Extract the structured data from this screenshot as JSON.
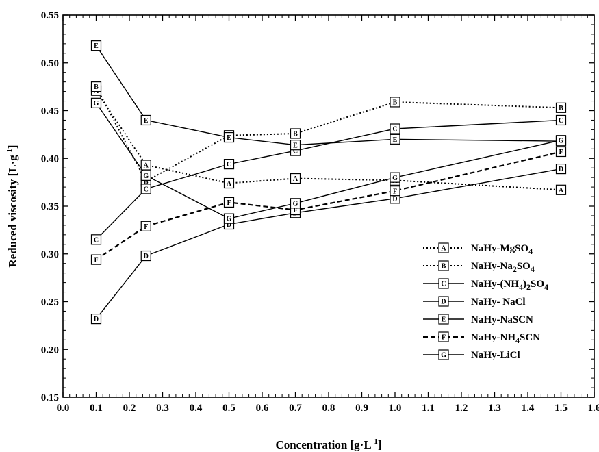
{
  "chart_data": {
    "type": "line",
    "xlabel": "Concentration [g·L",
    "xlabel_sup": "-1",
    "xlabel_close": "]",
    "ylabel": "Reduced viscosity [L·g",
    "ylabel_sup": "-1",
    "ylabel_close": "]",
    "xlim": [
      0.0,
      1.6
    ],
    "ylim": [
      0.15,
      0.55
    ],
    "x_ticks": [
      "0.0",
      "0.1",
      "0.2",
      "0.3",
      "0.4",
      "0.5",
      "0.6",
      "0.7",
      "0.8",
      "0.9",
      "1.0",
      "1.1",
      "1.2",
      "1.3",
      "1.4",
      "1.5",
      "1.6"
    ],
    "y_ticks": [
      "0.15",
      "0.20",
      "0.25",
      "0.30",
      "0.35",
      "0.40",
      "0.45",
      "0.50",
      "0.55"
    ],
    "legend_position": "bottom-right",
    "series": [
      {
        "marker": "A",
        "name": "NaHy-MgSO",
        "sub": "4",
        "rest": "",
        "line_style": "dotted",
        "x": [
          0.1,
          0.25,
          0.5,
          0.7,
          1.0,
          1.5
        ],
        "y": [
          0.471,
          0.393,
          0.374,
          0.379,
          0.377,
          0.367
        ]
      },
      {
        "marker": "B",
        "name": "NaHy-Na",
        "sub": "2",
        "rest": "SO4",
        "rest_parts": [
          "SO",
          "4"
        ],
        "line_style": "dotted",
        "x": [
          0.1,
          0.25,
          0.5,
          0.7,
          1.0,
          1.5
        ],
        "y": [
          0.475,
          0.376,
          0.424,
          0.426,
          0.459,
          0.453
        ]
      },
      {
        "marker": "C",
        "name": "NaHy-(NH",
        "sub": "4",
        "rest": ")2SO4",
        "rest_parts": [
          ")",
          "2",
          "SO",
          "4"
        ],
        "line_style": "solid",
        "x": [
          0.1,
          0.25,
          0.5,
          0.7,
          1.0,
          1.5
        ],
        "y": [
          0.315,
          0.368,
          0.394,
          0.408,
          0.431,
          0.44
        ]
      },
      {
        "marker": "D",
        "name": "NaHy- NaCl",
        "sub": "",
        "rest": "",
        "line_style": "solid",
        "x": [
          0.1,
          0.25,
          0.5,
          0.7,
          1.0,
          1.5
        ],
        "y": [
          0.232,
          0.298,
          0.331,
          0.343,
          0.358,
          0.389
        ]
      },
      {
        "marker": "E",
        "name": "NaHy-NaSCN",
        "sub": "",
        "rest": "",
        "line_style": "solid",
        "x": [
          0.1,
          0.25,
          0.5,
          0.7,
          1.0,
          1.5
        ],
        "y": [
          0.518,
          0.44,
          0.422,
          0.414,
          0.42,
          0.418
        ]
      },
      {
        "marker": "F",
        "name": "NaHy-NH",
        "sub": "4",
        "rest": "SCN",
        "rest_parts": [
          "SCN"
        ],
        "line_style": "dashed",
        "x": [
          0.1,
          0.25,
          0.5,
          0.7,
          1.0,
          1.5
        ],
        "y": [
          0.294,
          0.329,
          0.354,
          0.346,
          0.366,
          0.407
        ]
      },
      {
        "marker": "G",
        "name": "NaHy-LiCl",
        "sub": "",
        "rest": "",
        "line_style": "solid",
        "x": [
          0.1,
          0.25,
          0.5,
          0.7,
          1.0,
          1.5
        ],
        "y": [
          0.458,
          0.382,
          0.337,
          0.353,
          0.38,
          0.419
        ]
      }
    ]
  }
}
